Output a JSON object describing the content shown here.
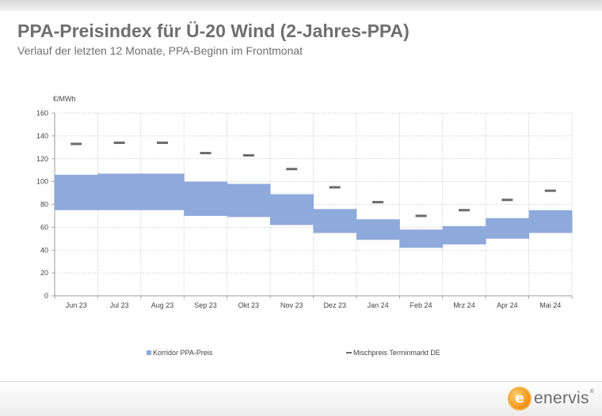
{
  "header": {
    "title": "PPA-Preisindex für Ü-20 Wind (2-Jahres-PPA)",
    "subtitle": "Verlauf der letzten 12 Monate, PPA-Beginn im Frontmonat"
  },
  "brand": {
    "logo_letter": "e",
    "name": "enervis",
    "registered": "®"
  },
  "chart_data": {
    "type": "bar",
    "unit_label": "€/MWh",
    "categories": [
      "Jun 23",
      "Jul 23",
      "Aug 23",
      "Sep 23",
      "Okt 23",
      "Nov 23",
      "Dez 23",
      "Jan 24",
      "Feb 24",
      "Mrz 24",
      "Apr 24",
      "Mai 24"
    ],
    "ylim": [
      0,
      160
    ],
    "yticks": [
      0,
      20,
      40,
      60,
      80,
      100,
      120,
      140,
      160
    ],
    "grid": true,
    "legend_position": "bottom",
    "series": [
      {
        "name": "Korridor PPA-Preis",
        "kind": "range",
        "color": "#8eaadb",
        "low": [
          75,
          75,
          75,
          70,
          69,
          62,
          55,
          49,
          42,
          45,
          50,
          55
        ],
        "high": [
          106,
          107,
          107,
          100,
          98,
          89,
          76,
          67,
          58,
          61,
          68,
          75
        ]
      },
      {
        "name": "Mischpreis Terminmarkt DE",
        "kind": "marker",
        "color": "#6b6b6b",
        "values": [
          133,
          134,
          134,
          125,
          123,
          111,
          95,
          82,
          70,
          75,
          84,
          92
        ]
      }
    ]
  }
}
